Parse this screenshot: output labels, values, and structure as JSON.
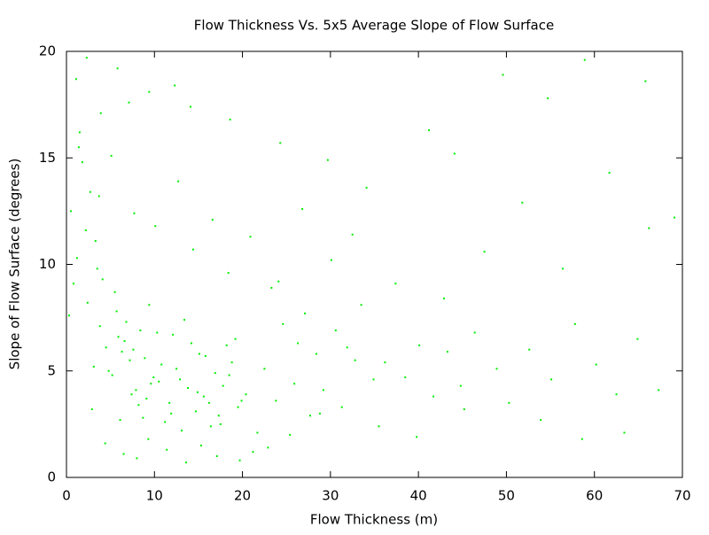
{
  "chart_data": {
    "type": "scatter",
    "title": "Flow Thickness Vs. 5x5 Average Slope of Flow Surface",
    "x_label": "Flow Thickness (m)",
    "y_label": "Slope of Flow Surface (degrees)",
    "color": "#00ee00",
    "xlim": [
      0,
      70
    ],
    "xticks": [
      0,
      10,
      20,
      30,
      40,
      50,
      60,
      70
    ],
    "ylim": [
      0,
      20
    ],
    "yticks": [
      0,
      5,
      10,
      15,
      20
    ],
    "x": [
      3.1,
      4.5,
      5.2,
      6.8,
      7.4,
      8.9,
      9.6,
      10.3,
      11.7,
      12.5,
      13.8,
      14.2,
      15.6,
      16.9,
      17.3,
      18.8,
      19.5,
      2.4,
      3.8,
      5.9,
      6.3,
      7.9,
      8.4,
      9.1,
      10.8,
      11.2,
      12.9,
      13.4,
      14.7,
      15.1,
      16.4,
      17.8,
      18.2,
      19.9,
      4.1,
      5.5,
      6.6,
      7.2,
      8.7,
      9.9,
      2.9,
      3.5,
      4.8,
      5.7,
      6.1,
      7.6,
      8.2,
      9.4,
      10.5,
      11.9,
      12.1,
      13.1,
      14.9,
      15.8,
      16.2,
      17.5,
      18.5,
      19.2,
      20.4,
      21.7,
      0.5,
      1.2,
      1.8,
      2.2,
      0.8,
      1.5,
      2.7,
      3.3,
      0.3,
      1.1,
      22.5,
      23.8,
      24.6,
      25.9,
      26.3,
      27.7,
      28.4,
      29.2,
      30.6,
      31.3,
      32.8,
      33.5,
      34.9,
      22.9,
      24.1,
      25.4,
      27.1,
      28.8,
      30.1,
      31.9,
      4.4,
      6.5,
      8.0,
      9.3,
      11.4,
      13.6,
      15.3,
      17.1,
      19.7,
      21.2,
      3.7,
      5.1,
      7.7,
      10.1,
      12.7,
      14.4,
      16.6,
      18.4,
      20.9,
      23.3,
      36.2,
      38.5,
      40.1,
      41.7,
      43.3,
      44.8,
      46.4,
      48.9,
      50.3,
      52.6,
      55.1,
      57.8,
      60.2,
      62.5,
      64.9,
      67.3,
      69.1,
      37.4,
      42.9,
      47.5,
      51.8,
      56.4,
      61.7,
      66.2,
      35.5,
      39.8,
      45.2,
      53.9,
      58.6,
      63.4,
      5.8,
      9.4,
      14.1,
      18.6,
      24.3,
      29.7,
      34.1,
      41.2,
      49.6,
      58.9,
      2.3,
      7.1,
      12.3,
      26.8,
      32.5,
      44.1,
      54.7,
      65.8,
      1.4,
      3.9
    ],
    "y": [
      5.2,
      6.1,
      4.8,
      7.3,
      3.9,
      5.6,
      4.4,
      6.8,
      3.5,
      5.1,
      4.2,
      6.3,
      3.8,
      4.9,
      2.9,
      5.4,
      3.3,
      8.2,
      7.1,
      6.6,
      5.9,
      4.1,
      6.9,
      3.7,
      5.3,
      2.6,
      4.6,
      7.4,
      3.1,
      5.8,
      2.4,
      4.3,
      6.2,
      3.6,
      9.3,
      8.7,
      6.4,
      5.5,
      2.8,
      4.7,
      3.2,
      9.8,
      5.0,
      7.8,
      2.7,
      6.0,
      3.4,
      8.1,
      4.5,
      3.0,
      6.7,
      2.2,
      4.0,
      5.7,
      3.5,
      2.5,
      4.8,
      6.5,
      3.9,
      2.1,
      12.5,
      10.3,
      14.8,
      11.6,
      9.1,
      16.2,
      13.4,
      11.1,
      7.6,
      18.7,
      5.1,
      3.6,
      7.2,
      4.4,
      6.3,
      2.9,
      5.8,
      4.1,
      6.9,
      3.3,
      5.5,
      8.1,
      4.6,
      1.4,
      9.2,
      2.0,
      7.7,
      3.0,
      10.2,
      6.1,
      1.6,
      1.1,
      0.9,
      1.8,
      1.3,
      0.7,
      1.5,
      1.0,
      0.8,
      1.2,
      13.2,
      15.1,
      12.4,
      11.8,
      13.9,
      10.7,
      12.1,
      9.6,
      11.3,
      8.9,
      5.4,
      4.7,
      6.2,
      3.8,
      5.9,
      4.3,
      6.8,
      5.1,
      3.5,
      6.0,
      4.6,
      7.2,
      5.3,
      3.9,
      6.5,
      4.1,
      12.2,
      9.1,
      8.4,
      10.6,
      12.9,
      9.8,
      14.3,
      11.7,
      2.4,
      1.9,
      3.2,
      2.7,
      1.8,
      2.1,
      19.2,
      18.1,
      17.4,
      16.8,
      15.7,
      14.9,
      13.6,
      16.3,
      18.9,
      19.6,
      19.7,
      17.6,
      18.4,
      12.6,
      11.4,
      15.2,
      17.8,
      18.6,
      15.5,
      17.1
    ]
  }
}
